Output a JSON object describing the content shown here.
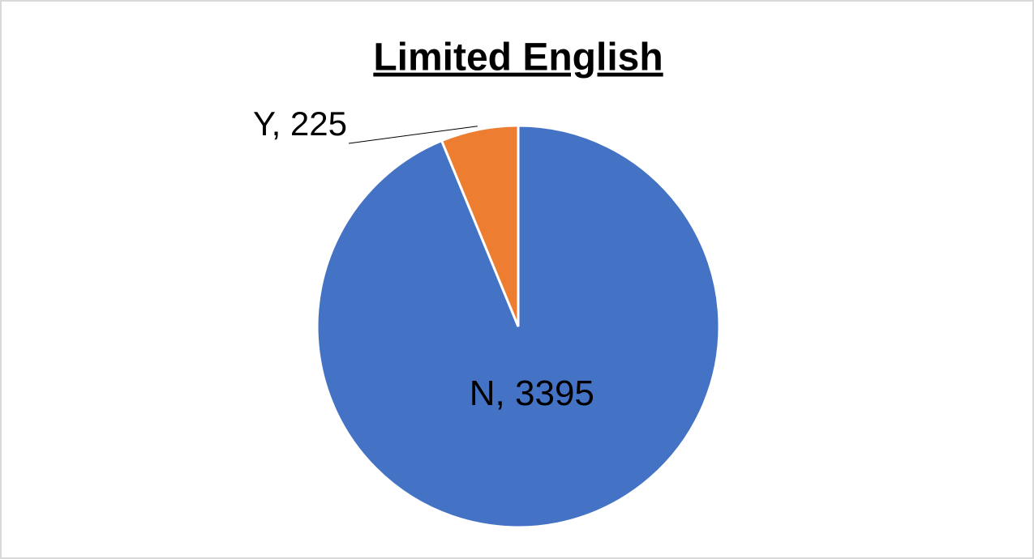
{
  "chart_data": {
    "type": "pie",
    "title": "Limited English",
    "values": [
      3395,
      225
    ],
    "value_labels": [
      "N, 3395",
      "Y, 225"
    ],
    "colors": [
      "#4472c4",
      "#ed7d31"
    ]
  }
}
